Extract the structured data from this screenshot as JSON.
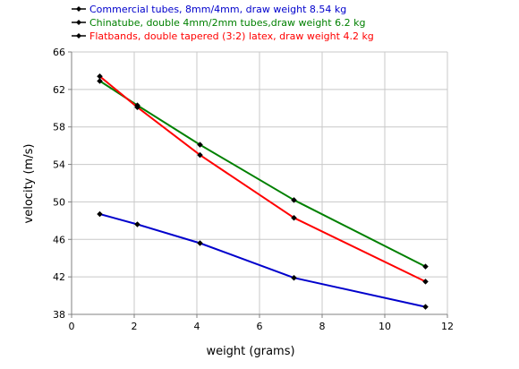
{
  "chart_data": {
    "type": "line",
    "title": "",
    "xlabel": "weight (grams)",
    "ylabel": "velocity (m/s)",
    "xlim": [
      0,
      12
    ],
    "ylim": [
      38,
      66
    ],
    "xticks": [
      0,
      2,
      4,
      6,
      8,
      10,
      12
    ],
    "yticks": [
      38,
      42,
      46,
      50,
      54,
      58,
      62,
      66
    ],
    "xtick_labels": [
      "0",
      "2",
      "4",
      "6",
      "8",
      "10",
      "12"
    ],
    "ytick_labels": [
      "38",
      "42",
      "46",
      "50",
      "54",
      "58",
      "62",
      "66"
    ],
    "grid": true,
    "legend_position": "top-left",
    "series": [
      {
        "name": "Commercial tubes, 8mm/4mm, draw weight 8.54 kg",
        "color": "#0000cc",
        "x": [
          0.9,
          2.1,
          4.1,
          7.1,
          11.3
        ],
        "y": [
          48.7,
          47.6,
          45.6,
          41.9,
          38.8
        ]
      },
      {
        "name": "Chinatube, double 4mm/2mm tubes,draw weight 6.2 kg",
        "color": "#008000",
        "x": [
          0.9,
          2.1,
          4.1,
          7.1,
          11.3
        ],
        "y": [
          62.9,
          60.3,
          56.1,
          50.2,
          43.1
        ]
      },
      {
        "name": "Flatbands, double tapered (3:2) latex, draw weight 4.2 kg",
        "color": "#ff0000",
        "x": [
          0.9,
          2.1,
          4.1,
          7.1,
          11.3
        ],
        "y": [
          63.4,
          60.1,
          55.0,
          48.3,
          41.5
        ]
      }
    ]
  }
}
